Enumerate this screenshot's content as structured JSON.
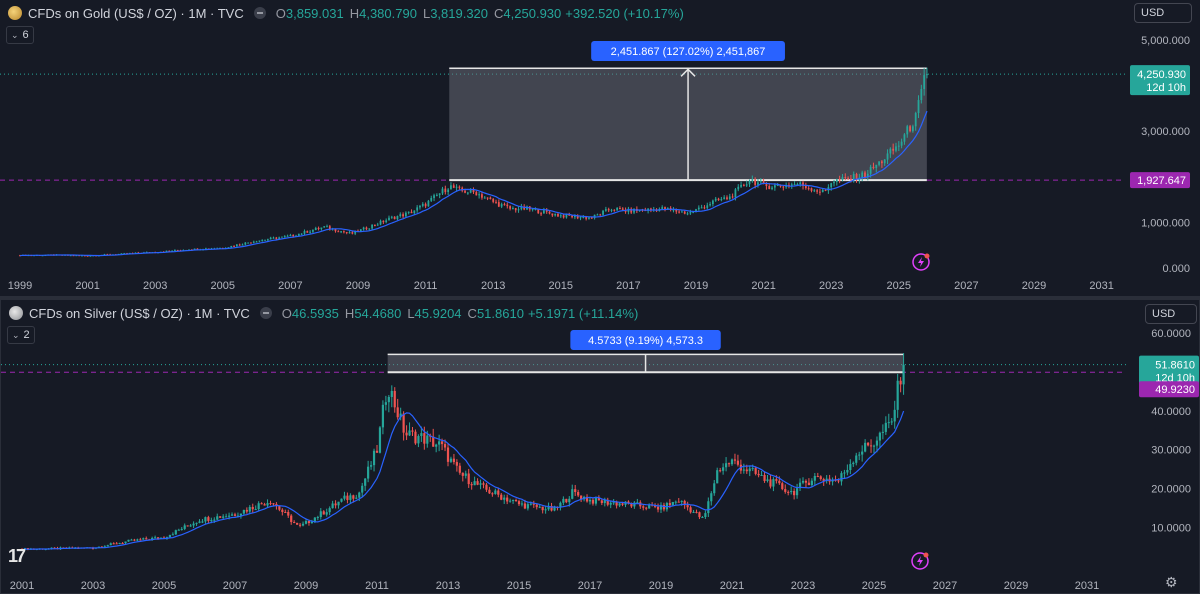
{
  "colors": {
    "up": "#26a69a",
    "down": "#ef5350",
    "ma": "#2962ff",
    "measure_label_bg": "#2962ff",
    "price_tag_green": "#26a69a",
    "price_tag_purple": "#9c27b0",
    "zone_fill": "#787b86"
  },
  "gold": {
    "symbol": "CFDs on Gold (US$ / OZ) · 1M · TVC",
    "o_label": "O",
    "o": "3,859.031",
    "h_label": "H",
    "h": "4,380.790",
    "l_label": "L",
    "l": "3,819.320",
    "c_label": "C",
    "c": "4,250.930",
    "change": "+392.520 (+10.17%)",
    "collapse_count": "6",
    "currency": "USD",
    "measure_label": "2,451.867 (127.02%) 2,451,867",
    "last_price_tag": "4,250.930",
    "countdown": "12d 10h",
    "level_tag": "1,927.647"
  },
  "silver": {
    "symbol": "CFDs on Silver (US$ / OZ) · 1M · TVC",
    "o_label": "O",
    "o": "46.5935",
    "h_label": "H",
    "h": "54.4680",
    "l_label": "L",
    "l": "45.9204",
    "c_label": "C",
    "c": "51.8610",
    "change": "+5.1971 (+11.14%)",
    "collapse_count": "2",
    "currency": "USD",
    "measure_label": "4.5733 (9.19%) 4,573.3",
    "last_price_tag": "51.8610",
    "countdown": "12d 10h",
    "level_tag": "49.9230"
  },
  "chart_data": [
    {
      "type": "candlestick",
      "title": "CFDs on Gold (US$ / OZ) · 1M · TVC",
      "x_tick_labels": [
        "1999",
        "2001",
        "2003",
        "2005",
        "2007",
        "2009",
        "2011",
        "2013",
        "2015",
        "2017",
        "2019",
        "2021",
        "2023",
        "2025",
        "2027",
        "2029",
        "2031"
      ],
      "y_tick_labels": [
        "5,000.000",
        "3,000.000",
        "1,000.000",
        "0.000"
      ],
      "ylim": [
        0,
        5000
      ],
      "x_years": [
        1999.0,
        2000.0,
        2001.0,
        2002.0,
        2003.0,
        2004.0,
        2005.0,
        2006.0,
        2007.0,
        2008.0,
        2008.8,
        2009.5,
        2010.0,
        2010.5,
        2011.0,
        2011.7,
        2012.0,
        2012.5,
        2013.0,
        2013.5,
        2014.0,
        2015.0,
        2015.9,
        2016.5,
        2017.0,
        2018.0,
        2018.8,
        2019.5,
        2020.0,
        2020.6,
        2021.0,
        2021.5,
        2022.0,
        2022.8,
        2023.0,
        2023.5,
        2024.0,
        2024.5,
        2025.0,
        2025.5,
        2025.8
      ],
      "close": [
        280,
        285,
        270,
        310,
        350,
        410,
        440,
        600,
        700,
        900,
        750,
        950,
        1100,
        1200,
        1400,
        1800,
        1700,
        1650,
        1450,
        1300,
        1300,
        1150,
        1100,
        1300,
        1250,
        1300,
        1200,
        1450,
        1550,
        1950,
        1800,
        1800,
        1850,
        1650,
        1900,
        1950,
        2050,
        2350,
        2700,
        3300,
        4250
      ],
      "ma_label": "",
      "measure": {
        "from": 1927.647,
        "to": 4379.514,
        "change": 2451.867,
        "change_pct": 127.02
      },
      "last_price": 4250.93,
      "level": 1927.647,
      "countdown": "12d 10h"
    },
    {
      "type": "candlestick",
      "title": "CFDs on Silver (US$ / OZ) · 1M · TVC",
      "x_tick_labels": [
        "2001",
        "2003",
        "2005",
        "2007",
        "2009",
        "2011",
        "2013",
        "2015",
        "2017",
        "2019",
        "2021",
        "2023",
        "2025",
        "2027",
        "2029",
        "2031"
      ],
      "y_tick_labels": [
        "60.0000",
        "50.0000",
        "40.0000",
        "30.0000",
        "20.0000",
        "10.0000"
      ],
      "ylim": [
        5,
        60
      ],
      "x_years": [
        2001.0,
        2002.0,
        2003.0,
        2004.0,
        2005.0,
        2006.0,
        2007.0,
        2008.0,
        2008.8,
        2009.5,
        2010.0,
        2010.5,
        2011.0,
        2011.3,
        2011.8,
        2012.3,
        2012.8,
        2013.3,
        2014.0,
        2015.0,
        2016.0,
        2016.5,
        2017.0,
        2018.0,
        2019.0,
        2019.5,
        2020.2,
        2020.6,
        2021.0,
        2022.0,
        2022.7,
        2023.3,
        2024.0,
        2024.5,
        2025.0,
        2025.5,
        2025.8
      ],
      "close": [
        4.5,
        4.6,
        4.8,
        6.5,
        7.5,
        12,
        13.5,
        17,
        10,
        14,
        17,
        19,
        30,
        47,
        34,
        33,
        31,
        24,
        20,
        16,
        14.5,
        19,
        17,
        16,
        15,
        17,
        12,
        25,
        27,
        22,
        19,
        23,
        22,
        29,
        32,
        37,
        51.86
      ],
      "measure": {
        "from": 49.923,
        "to": 54.4963,
        "change": 4.5733,
        "change_pct": 9.19
      },
      "last_price": 51.861,
      "level": 49.923,
      "countdown": "12d 10h"
    }
  ]
}
